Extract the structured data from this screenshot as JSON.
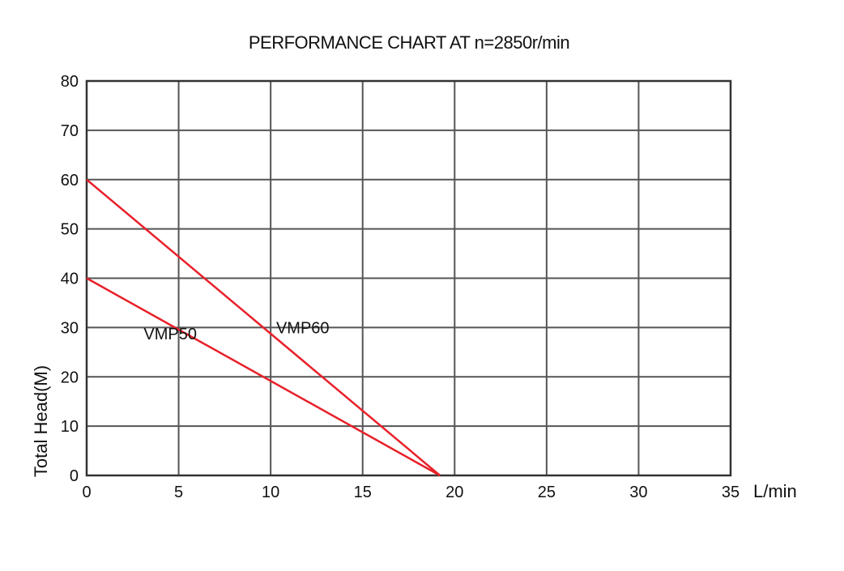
{
  "chart_data": {
    "type": "line",
    "title": "PERFORMANCE CHART AT n=2850r/min",
    "xlabel": "L/min",
    "ylabel": "Total Head(M)",
    "xlim": [
      0,
      35
    ],
    "ylim": [
      0,
      80
    ],
    "x_ticks": [
      0,
      5,
      10,
      15,
      20,
      25,
      30,
      35
    ],
    "y_ticks": [
      0,
      10,
      20,
      30,
      40,
      50,
      60,
      70,
      80
    ],
    "grid": true,
    "legend": "none",
    "series": [
      {
        "name": "VMP50",
        "x": [
          0,
          19.2
        ],
        "y": [
          40,
          0
        ]
      },
      {
        "name": "VMP60",
        "x": [
          0,
          19.2
        ],
        "y": [
          60,
          0
        ]
      }
    ],
    "colors": {
      "line": "#e8202a",
      "grid": "#555555",
      "frame": "#333333"
    }
  }
}
